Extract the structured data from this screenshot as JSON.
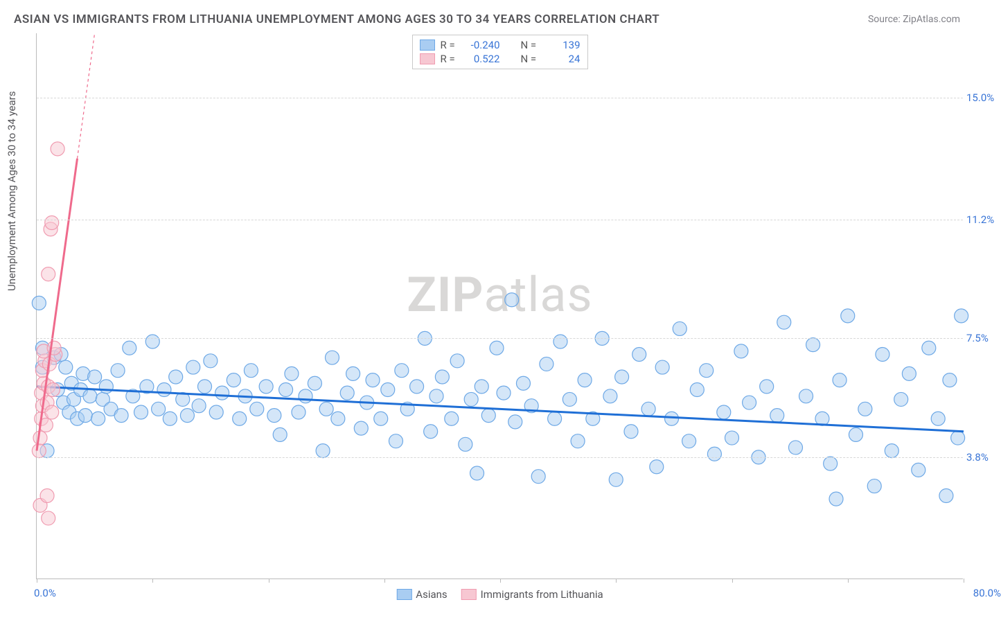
{
  "title": "ASIAN VS IMMIGRANTS FROM LITHUANIA UNEMPLOYMENT AMONG AGES 30 TO 34 YEARS CORRELATION CHART",
  "source": "Source: ZipAtlas.com",
  "ylabel": "Unemployment Among Ages 30 to 34 years",
  "watermark_bold": "ZIP",
  "watermark_rest": "atlas",
  "chart": {
    "type": "scatter",
    "background_color": "#ffffff",
    "grid_color": "#d7d7d7",
    "axis_color": "#bbbbbb",
    "tick_color": "#3874d6",
    "xlim": [
      0,
      80
    ],
    "ylim": [
      0,
      17
    ],
    "x_ticks": [
      0,
      10,
      20,
      30,
      40,
      50,
      60,
      70,
      80
    ],
    "x_tick_labels_shown": {
      "0": "0.0%",
      "80": "80.0%"
    },
    "y_gridlines": [
      3.8,
      7.5,
      11.2,
      15.0
    ],
    "y_tick_labels": [
      "3.8%",
      "7.5%",
      "11.2%",
      "15.0%"
    ],
    "marker_radius": 10,
    "marker_opacity": 0.5,
    "series": [
      {
        "name": "Asians",
        "color_fill": "#a9cdf2",
        "color_stroke": "#6da8e6",
        "trend_color": "#1f6fd6",
        "trend_width": 3,
        "R": "-0.240",
        "N": "139",
        "trend": {
          "x1": 0,
          "y1": 6.0,
          "x2": 80,
          "y2": 4.6
        },
        "points": [
          [
            0.2,
            8.6
          ],
          [
            0.5,
            7.2
          ],
          [
            0.5,
            6.6
          ],
          [
            0.9,
            4.0
          ],
          [
            1.5,
            6.9
          ],
          [
            1.8,
            5.9
          ],
          [
            2.1,
            7.0
          ],
          [
            2.3,
            5.5
          ],
          [
            2.5,
            6.6
          ],
          [
            2.8,
            5.2
          ],
          [
            3.0,
            6.1
          ],
          [
            3.2,
            5.6
          ],
          [
            3.5,
            5.0
          ],
          [
            3.8,
            5.9
          ],
          [
            4.0,
            6.4
          ],
          [
            4.2,
            5.1
          ],
          [
            4.6,
            5.7
          ],
          [
            5.0,
            6.3
          ],
          [
            5.3,
            5.0
          ],
          [
            5.7,
            5.6
          ],
          [
            6.0,
            6.0
          ],
          [
            6.4,
            5.3
          ],
          [
            7.0,
            6.5
          ],
          [
            7.3,
            5.1
          ],
          [
            8.0,
            7.2
          ],
          [
            8.3,
            5.7
          ],
          [
            9.0,
            5.2
          ],
          [
            9.5,
            6.0
          ],
          [
            10.0,
            7.4
          ],
          [
            10.5,
            5.3
          ],
          [
            11.0,
            5.9
          ],
          [
            11.5,
            5.0
          ],
          [
            12.0,
            6.3
          ],
          [
            12.6,
            5.6
          ],
          [
            13.0,
            5.1
          ],
          [
            13.5,
            6.6
          ],
          [
            14.0,
            5.4
          ],
          [
            14.5,
            6.0
          ],
          [
            15.0,
            6.8
          ],
          [
            15.5,
            5.2
          ],
          [
            16.0,
            5.8
          ],
          [
            17.0,
            6.2
          ],
          [
            17.5,
            5.0
          ],
          [
            18.0,
            5.7
          ],
          [
            18.5,
            6.5
          ],
          [
            19.0,
            5.3
          ],
          [
            19.8,
            6.0
          ],
          [
            20.5,
            5.1
          ],
          [
            21.0,
            4.5
          ],
          [
            21.5,
            5.9
          ],
          [
            22.0,
            6.4
          ],
          [
            22.6,
            5.2
          ],
          [
            23.2,
            5.7
          ],
          [
            24.0,
            6.1
          ],
          [
            24.7,
            4.0
          ],
          [
            25.0,
            5.3
          ],
          [
            25.5,
            6.9
          ],
          [
            26.0,
            5.0
          ],
          [
            26.8,
            5.8
          ],
          [
            27.3,
            6.4
          ],
          [
            28.0,
            4.7
          ],
          [
            28.5,
            5.5
          ],
          [
            29.0,
            6.2
          ],
          [
            29.7,
            5.0
          ],
          [
            30.3,
            5.9
          ],
          [
            31.0,
            4.3
          ],
          [
            31.5,
            6.5
          ],
          [
            32.0,
            5.3
          ],
          [
            32.8,
            6.0
          ],
          [
            33.5,
            7.5
          ],
          [
            34.0,
            4.6
          ],
          [
            34.5,
            5.7
          ],
          [
            35.0,
            6.3
          ],
          [
            35.8,
            5.0
          ],
          [
            36.3,
            6.8
          ],
          [
            37.0,
            4.2
          ],
          [
            37.5,
            5.6
          ],
          [
            38.0,
            3.3
          ],
          [
            38.4,
            6.0
          ],
          [
            39.0,
            5.1
          ],
          [
            39.7,
            7.2
          ],
          [
            40.3,
            5.8
          ],
          [
            41.0,
            8.7
          ],
          [
            41.3,
            4.9
          ],
          [
            42.0,
            6.1
          ],
          [
            42.7,
            5.4
          ],
          [
            43.3,
            3.2
          ],
          [
            44.0,
            6.7
          ],
          [
            44.7,
            5.0
          ],
          [
            45.2,
            7.4
          ],
          [
            46.0,
            5.6
          ],
          [
            46.7,
            4.3
          ],
          [
            47.3,
            6.2
          ],
          [
            48.0,
            5.0
          ],
          [
            48.8,
            7.5
          ],
          [
            49.5,
            5.7
          ],
          [
            50.0,
            3.1
          ],
          [
            50.5,
            6.3
          ],
          [
            51.3,
            4.6
          ],
          [
            52.0,
            7.0
          ],
          [
            52.8,
            5.3
          ],
          [
            53.5,
            3.5
          ],
          [
            54.0,
            6.6
          ],
          [
            54.8,
            5.0
          ],
          [
            55.5,
            7.8
          ],
          [
            56.3,
            4.3
          ],
          [
            57.0,
            5.9
          ],
          [
            57.8,
            6.5
          ],
          [
            58.5,
            3.9
          ],
          [
            59.3,
            5.2
          ],
          [
            60.0,
            4.4
          ],
          [
            60.8,
            7.1
          ],
          [
            61.5,
            5.5
          ],
          [
            62.3,
            3.8
          ],
          [
            63.0,
            6.0
          ],
          [
            63.9,
            5.1
          ],
          [
            64.5,
            8.0
          ],
          [
            65.5,
            4.1
          ],
          [
            66.4,
            5.7
          ],
          [
            67.0,
            7.3
          ],
          [
            67.8,
            5.0
          ],
          [
            68.5,
            3.6
          ],
          [
            69.0,
            2.5
          ],
          [
            69.3,
            6.2
          ],
          [
            70.0,
            8.2
          ],
          [
            70.7,
            4.5
          ],
          [
            71.5,
            5.3
          ],
          [
            72.3,
            2.9
          ],
          [
            73.0,
            7.0
          ],
          [
            73.8,
            4.0
          ],
          [
            74.6,
            5.6
          ],
          [
            75.3,
            6.4
          ],
          [
            76.1,
            3.4
          ],
          [
            77.0,
            7.2
          ],
          [
            77.8,
            5.0
          ],
          [
            78.5,
            2.6
          ],
          [
            78.8,
            6.2
          ],
          [
            79.5,
            4.4
          ],
          [
            79.8,
            8.2
          ]
        ]
      },
      {
        "name": "Immigrants from Lithuania",
        "color_fill": "#f7c7d2",
        "color_stroke": "#f09bb0",
        "trend_color": "#ef6a8c",
        "trend_width": 3,
        "R": "0.522",
        "N": "24",
        "trend": {
          "x1": 0,
          "y1": 4.0,
          "x2": 5.0,
          "y2": 17.0
        },
        "trend_dash_after_x": 3.5,
        "points": [
          [
            0.2,
            4.0
          ],
          [
            0.3,
            4.4
          ],
          [
            0.4,
            5.0
          ],
          [
            0.5,
            5.4
          ],
          [
            0.4,
            5.8
          ],
          [
            0.6,
            6.1
          ],
          [
            0.5,
            6.5
          ],
          [
            0.7,
            6.8
          ],
          [
            0.6,
            7.1
          ],
          [
            0.8,
            4.8
          ],
          [
            0.9,
            5.5
          ],
          [
            1.0,
            6.0
          ],
          [
            1.1,
            6.7
          ],
          [
            1.3,
            5.2
          ],
          [
            1.4,
            5.9
          ],
          [
            1.0,
            9.5
          ],
          [
            1.2,
            10.9
          ],
          [
            1.3,
            11.1
          ],
          [
            1.6,
            7.0
          ],
          [
            1.8,
            13.4
          ],
          [
            0.3,
            2.3
          ],
          [
            0.9,
            2.6
          ],
          [
            1.0,
            1.9
          ],
          [
            1.5,
            7.2
          ]
        ]
      }
    ]
  },
  "legend_labels": {
    "R": "R =",
    "N": "N ="
  }
}
